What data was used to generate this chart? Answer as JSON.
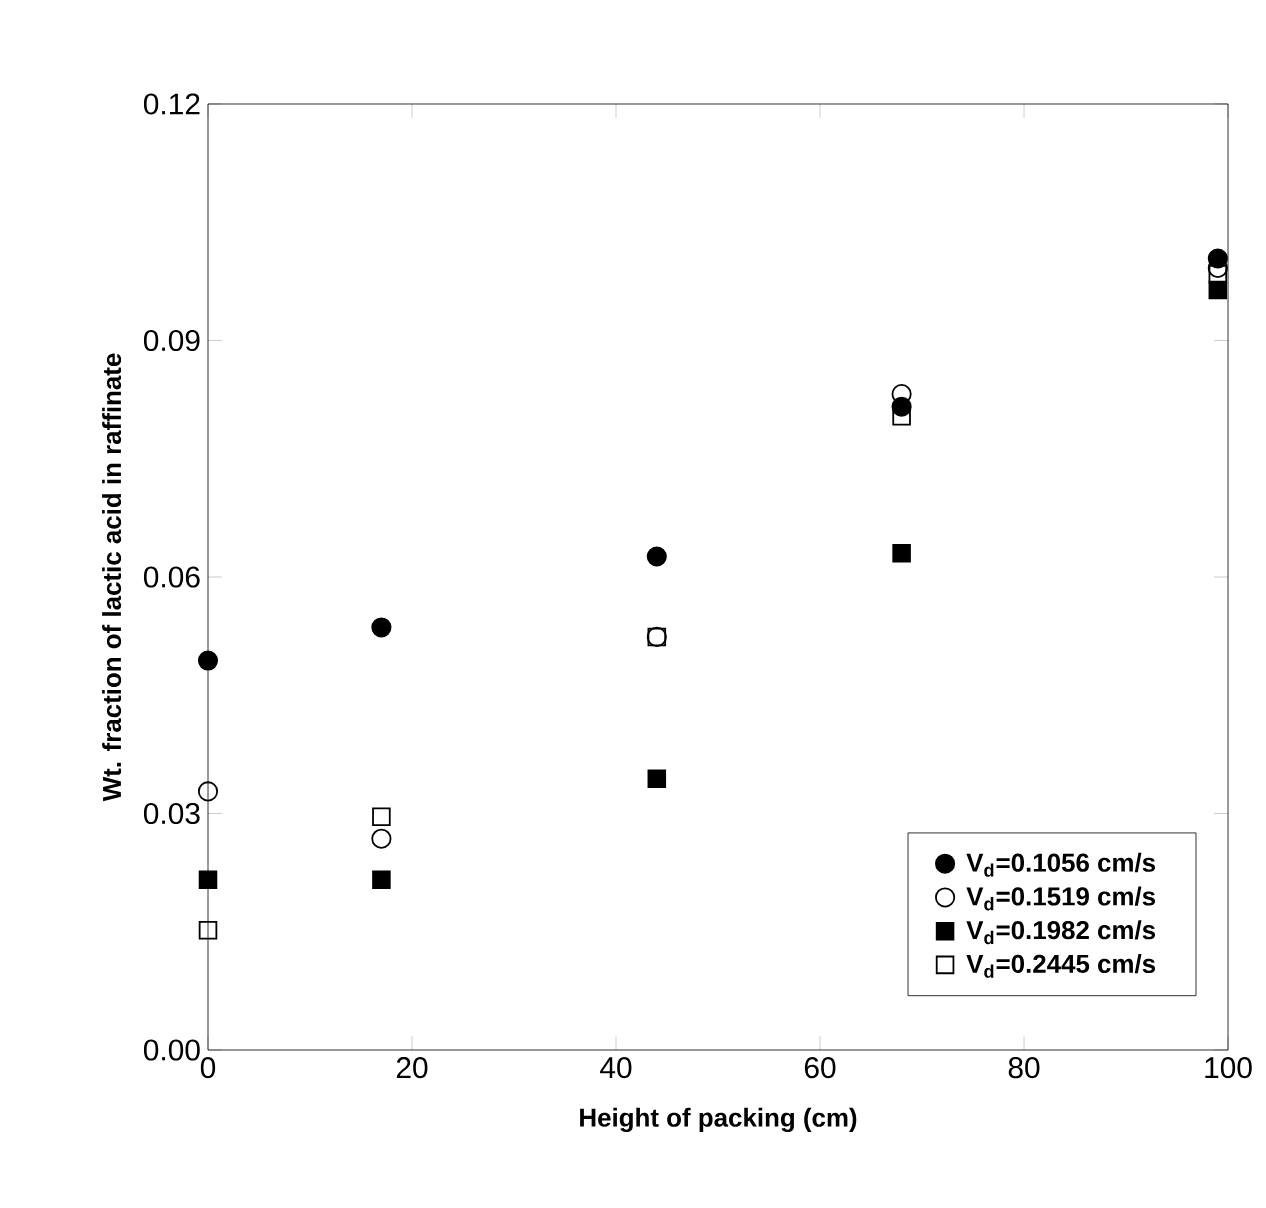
{
  "chart_data": {
    "type": "scatter",
    "xlabel": "Height of packing (cm)",
    "ylabel": "Wt. fraction of lactic acid in raffinate",
    "series": [
      {
        "name": "V$_{d}$=0.1056 cm/s",
        "color": "#000000",
        "marker": "circle",
        "x": [
          0,
          17,
          44,
          68,
          99
        ],
        "values": [
          0.0494,
          0.0536,
          0.0626,
          0.0816,
          0.1004
        ]
      },
      {
        "name": "V$_{d}$=0.1519 cm/s",
        "color": "#000000",
        "marker": "circle",
        "x": [
          0,
          17,
          44,
          68,
          99
        ],
        "values": [
          0.0328,
          0.0268,
          0.0524,
          0.0832,
          0.0992
        ]
      },
      {
        "name": "V$_{d}$=0.1982 cm/s",
        "color": "#000000",
        "marker": "square",
        "x": [
          0,
          17,
          44,
          68,
          99
        ],
        "values": [
          0.0216,
          0.0216,
          0.0344,
          0.063,
          0.0964
        ]
      },
      {
        "name": "V$_{d}$=0.2445 cm/s",
        "color": "#000000",
        "marker": "square",
        "x": [
          0,
          17,
          44,
          68,
          99
        ],
        "values": [
          0.0152,
          0.0296,
          0.0524,
          0.0804,
          0.0984
        ]
      }
    ],
    "xlim": [
      0,
      100
    ],
    "ylim": [
      0,
      0.12
    ],
    "xticks": [
      0,
      20,
      40,
      60,
      80,
      100
    ],
    "yticks": [
      {
        "value": 0,
        "label": "0.00"
      },
      {
        "value": 0.03,
        "label": "0.03"
      },
      {
        "value": 0.06,
        "label": "0.06"
      },
      {
        "value": 0.09,
        "label": "0.09"
      },
      {
        "value": 0.12,
        "label": "0.12"
      }
    ],
    "legend": "bottom right",
    "grid": false
  }
}
